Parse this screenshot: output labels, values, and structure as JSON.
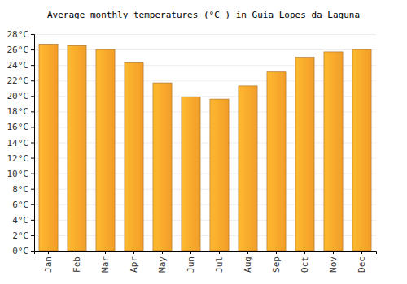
{
  "chart_data": {
    "type": "bar",
    "title": "Average monthly temperatures (°C ) in Guia Lopes da Laguna",
    "categories": [
      "Jan",
      "Feb",
      "Mar",
      "Apr",
      "May",
      "Jun",
      "Jul",
      "Aug",
      "Sep",
      "Oct",
      "Nov",
      "Dec"
    ],
    "values": [
      26.7,
      26.5,
      26.0,
      24.3,
      21.7,
      19.9,
      19.6,
      21.3,
      23.1,
      25.0,
      25.7,
      26.0
    ],
    "color": "#ffa62b",
    "ylim": [
      0,
      28
    ],
    "yticks": [
      {
        "value": 0,
        "label": "0°C"
      },
      {
        "value": 2,
        "label": "2°C"
      },
      {
        "value": 4,
        "label": "4°C"
      },
      {
        "value": 6,
        "label": "6°C"
      },
      {
        "value": 8,
        "label": "8°C"
      },
      {
        "value": 10,
        "label": "10°C"
      },
      {
        "value": 12,
        "label": "12°C"
      },
      {
        "value": 14,
        "label": "14°C"
      },
      {
        "value": 16,
        "label": "16°C"
      },
      {
        "value": 18,
        "label": "18°C"
      },
      {
        "value": 20,
        "label": "20°C"
      },
      {
        "value": 22,
        "label": "22°C"
      },
      {
        "value": 24,
        "label": "24°C"
      },
      {
        "value": 26,
        "label": "26°C"
      },
      {
        "value": 28,
        "label": "28°C"
      }
    ],
    "grid": true
  }
}
